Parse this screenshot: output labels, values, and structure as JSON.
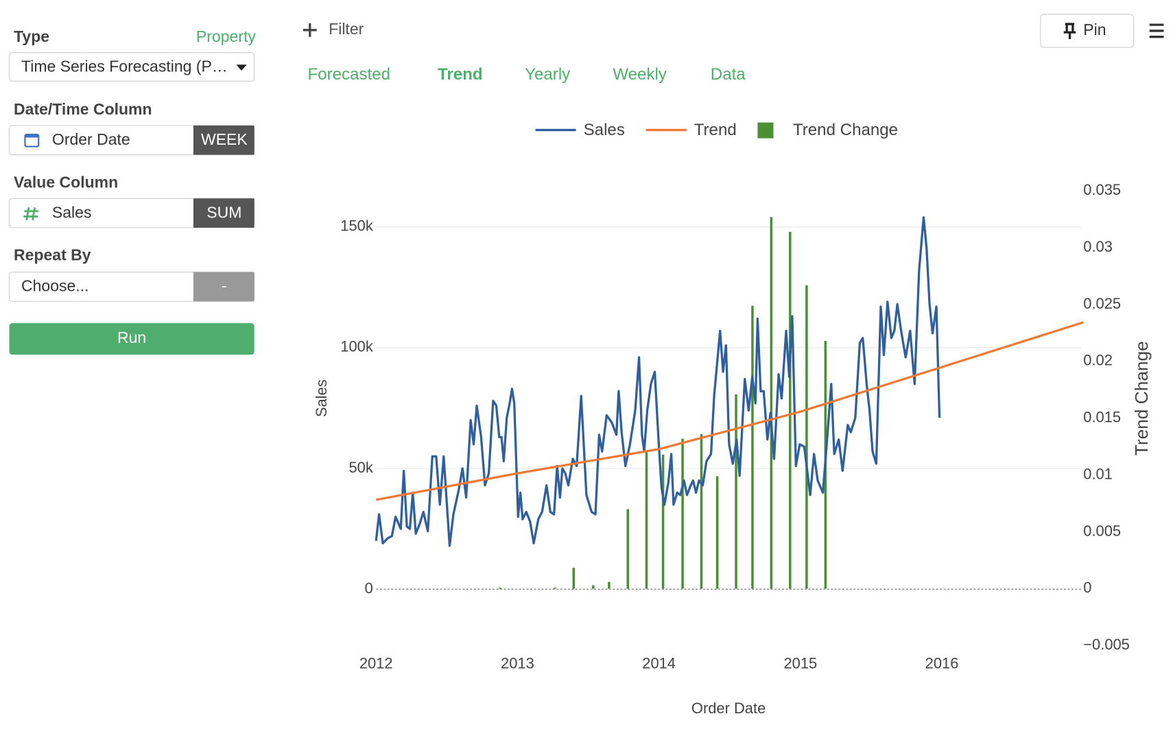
{
  "sidebar": {
    "type_label": "Type",
    "property_link": "Property",
    "type_value": "Time Series Forecasting (P…",
    "date_label": "Date/Time Column",
    "date_value": "Order Date",
    "date_unit": "WEEK",
    "value_label": "Value Column",
    "value_value": "Sales",
    "value_agg": "SUM",
    "repeat_label": "Repeat By",
    "repeat_value": "Choose...",
    "repeat_button": "-",
    "run": "Run"
  },
  "toolbar": {
    "filter": "Filter",
    "pin": "Pin"
  },
  "tabs": [
    "Forecasted",
    "Trend",
    "Yearly",
    "Weekly",
    "Data"
  ],
  "active_tab": 1,
  "chart_data": {
    "type": "line",
    "x_label": "Order Date",
    "y_label": "Sales",
    "y2_label": "Trend Change",
    "xlim": [
      2012,
      2017
    ],
    "xticks": [
      2012,
      2013,
      2014,
      2015,
      2016
    ],
    "ylim": [
      -23340,
      164940
    ],
    "yticks": [
      0,
      {
        "value": 50000,
        "label": "50k"
      },
      {
        "value": 100000,
        "label": "100k"
      },
      {
        "value": 150000,
        "label": "150k"
      }
    ],
    "y2lim": [
      -0.005,
      0.035
    ],
    "y2ticks": [
      {
        "value": -0.005,
        "label": "−0.005"
      },
      0,
      0.005,
      0.01,
      0.015,
      0.02,
      0.025,
      0.03,
      0.035
    ],
    "grid": true,
    "legend": "top",
    "series": [
      {
        "name": "Sales",
        "color": "#2f5f9e",
        "type": "line",
        "x": [
          2012.0,
          2012.021,
          2012.048,
          2012.08,
          2012.112,
          2012.138,
          2012.175,
          2012.196,
          2012.218,
          2012.239,
          2012.26,
          2012.281,
          2012.308,
          2012.335,
          2012.366,
          2012.398,
          2012.425,
          2012.451,
          2012.478,
          2012.52,
          2012.547,
          2012.584,
          2012.611,
          2012.637,
          2012.669,
          2012.69,
          2012.712,
          2012.743,
          2012.77,
          2012.797,
          2012.828,
          2012.85,
          2012.871,
          2012.887,
          2012.903,
          2012.924,
          2012.945,
          2012.961,
          2012.977,
          2013.004,
          2013.02,
          2013.036,
          2013.062,
          2013.089,
          2013.115,
          2013.147,
          2013.174,
          2013.205,
          2013.232,
          2013.258,
          2013.28,
          2013.301,
          2013.317,
          2013.338,
          2013.359,
          2013.391,
          2013.418,
          2013.45,
          2013.487,
          2013.524,
          2013.551,
          2013.577,
          2013.598,
          2013.63,
          2013.667,
          2013.699,
          2013.715,
          2013.736,
          2013.763,
          2013.795,
          2013.832,
          2013.859,
          2013.88,
          2013.896,
          2013.917,
          2013.943,
          2013.97,
          2013.997,
          2014.018,
          2014.039,
          2014.066,
          2014.087,
          2014.103,
          2014.129,
          2014.151,
          2014.177,
          2014.198,
          2014.225,
          2014.241,
          2014.262,
          2014.283,
          2014.31,
          2014.336,
          2014.368,
          2014.39,
          2014.432,
          2014.453,
          2014.474,
          2014.496,
          2014.522,
          2014.549,
          2014.57,
          2014.607,
          2014.634,
          2014.66,
          2014.682,
          2014.697,
          2014.719,
          2014.74,
          2014.767,
          2014.788,
          2014.814,
          2014.846,
          2014.867,
          2014.899,
          2014.921,
          2014.942,
          2014.968,
          2014.995,
          2015.027,
          2015.069,
          2015.096,
          2015.122,
          2015.159,
          2015.186,
          2015.218,
          2015.239,
          2015.271,
          2015.298,
          2015.335,
          2015.356,
          2015.388,
          2015.42,
          2015.441,
          2015.468,
          2015.489,
          2015.51,
          2015.536,
          2015.568,
          2015.59,
          2015.616,
          2015.643,
          2015.664,
          2015.685,
          2015.712,
          2015.744,
          2015.776,
          2015.807,
          2015.839,
          2015.871,
          2015.892,
          2015.913,
          2015.934,
          2015.961,
          2015.983
        ],
        "values": [
          20000,
          31000,
          19000,
          21000,
          22000,
          30000,
          25000,
          49000,
          26000,
          25000,
          40000,
          23000,
          27000,
          32000,
          24000,
          55000,
          55000,
          35000,
          55000,
          18000,
          31000,
          41000,
          50000,
          38000,
          70000,
          60000,
          76000,
          63000,
          43000,
          48000,
          78000,
          76000,
          63000,
          63000,
          53000,
          71000,
          77000,
          83000,
          77000,
          30000,
          40000,
          29000,
          32000,
          28000,
          19000,
          29000,
          32000,
          43000,
          32000,
          31000,
          51000,
          38000,
          50000,
          48000,
          43000,
          54000,
          51000,
          80000,
          39000,
          32000,
          31000,
          64000,
          57000,
          72000,
          69000,
          64000,
          82000,
          65000,
          51000,
          60000,
          74000,
          96000,
          64000,
          57000,
          74000,
          85000,
          90000,
          62000,
          42000,
          35000,
          44000,
          56000,
          35000,
          40000,
          39000,
          45000,
          39000,
          43000,
          45000,
          40000,
          45000,
          43000,
          53000,
          56000,
          80000,
          107000,
          90000,
          101000,
          60000,
          52000,
          62000,
          47000,
          87000,
          74000,
          88000,
          77000,
          112000,
          82000,
          82000,
          62000,
          73000,
          54000,
          89000,
          79000,
          107000,
          88000,
          113000,
          51000,
          60000,
          59000,
          39000,
          56000,
          45000,
          40000,
          60000,
          85000,
          56000,
          62000,
          49000,
          68000,
          65000,
          71000,
          102000,
          104000,
          85000,
          74000,
          57000,
          52000,
          117000,
          97000,
          119000,
          104000,
          107000,
          118000,
          107000,
          96000,
          107000,
          85000,
          132000,
          154000,
          141000,
          118000,
          106000,
          117000,
          71000
        ]
      },
      {
        "name": "Trend",
        "color": "#ef7a35",
        "type": "line",
        "x": [
          2012,
          2013,
          2014,
          2015,
          2016,
          2017
        ],
        "values": [
          37000,
          48000,
          58000,
          73500,
          92000,
          110500
        ]
      },
      {
        "name": "Trend Change",
        "color": "#4b8f35",
        "type": "bar",
        "axis": "y2",
        "x": [
          2012.877,
          2013.264,
          2013.397,
          2013.535,
          2013.647,
          2013.78,
          2013.912,
          2014.029,
          2014.167,
          2014.3,
          2014.412,
          2014.545,
          2014.661,
          2014.794,
          2014.927,
          2015.044,
          2015.177
        ],
        "values": [
          0.0001,
          0.0001,
          0.00185,
          0.0003,
          0.0006,
          0.007,
          0.012,
          0.0118,
          0.0132,
          0.0136,
          0.0099,
          0.0171,
          0.0249,
          0.0327,
          0.0314,
          0.0267,
          0.0218
        ]
      }
    ]
  }
}
